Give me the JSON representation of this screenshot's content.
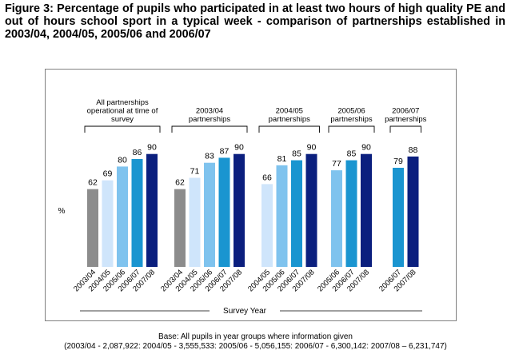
{
  "title": "Figure 3:  Percentage of pupils who participated in at least two hours of high quality PE and out of hours school sport in a typical week - comparison of partnerships established in 2003/04, 2004/05, 2005/06 and 2006/07",
  "base_text": {
    "line1": "Base: All pupils in year groups where information given",
    "line2": "(2003/04 - 2,087,922: 2004/05 - 3,555,533: 2005/06 - 5,056,155: 2006/07 - 6,300,142: 2007/08 – 6,231,747)"
  },
  "colors": {
    "2003/04": "#8c8c8c",
    "2004/05": "#cfe5fb",
    "2005/06": "#7fc3ee",
    "2006/07": "#1a95d0",
    "2007/08": "#0b1f7e"
  },
  "chart_data": {
    "type": "bar",
    "ylabel": "%",
    "xlabel": "Survey Year",
    "ylim": [
      0,
      100
    ],
    "grid": false,
    "groups": [
      {
        "label": "All partnerships operational at time of survey",
        "bars": [
          {
            "year": "2003/04",
            "value": 62
          },
          {
            "year": "2004/05",
            "value": 69
          },
          {
            "year": "2005/06",
            "value": 80
          },
          {
            "year": "2006/07",
            "value": 86
          },
          {
            "year": "2007/08",
            "value": 90
          }
        ]
      },
      {
        "label": "2003/04 partnerships",
        "bars": [
          {
            "year": "2003/04",
            "value": 62
          },
          {
            "year": "2004/05",
            "value": 71
          },
          {
            "year": "2005/06",
            "value": 83
          },
          {
            "year": "2006/07",
            "value": 87
          },
          {
            "year": "2007/08",
            "value": 90
          }
        ]
      },
      {
        "label": "2004/05 partnerships",
        "bars": [
          {
            "year": "2004/05",
            "value": 66
          },
          {
            "year": "2005/06",
            "value": 81
          },
          {
            "year": "2006/07",
            "value": 85
          },
          {
            "year": "2007/08",
            "value": 90
          }
        ]
      },
      {
        "label": "2005/06 partnerships",
        "bars": [
          {
            "year": "2005/06",
            "value": 77
          },
          {
            "year": "2006/07",
            "value": 85
          },
          {
            "year": "2007/08",
            "value": 90
          }
        ]
      },
      {
        "label": "2006/07 partnerships",
        "bars": [
          {
            "year": "2006/07",
            "value": 79
          },
          {
            "year": "2007/08",
            "value": 88
          }
        ]
      }
    ]
  }
}
